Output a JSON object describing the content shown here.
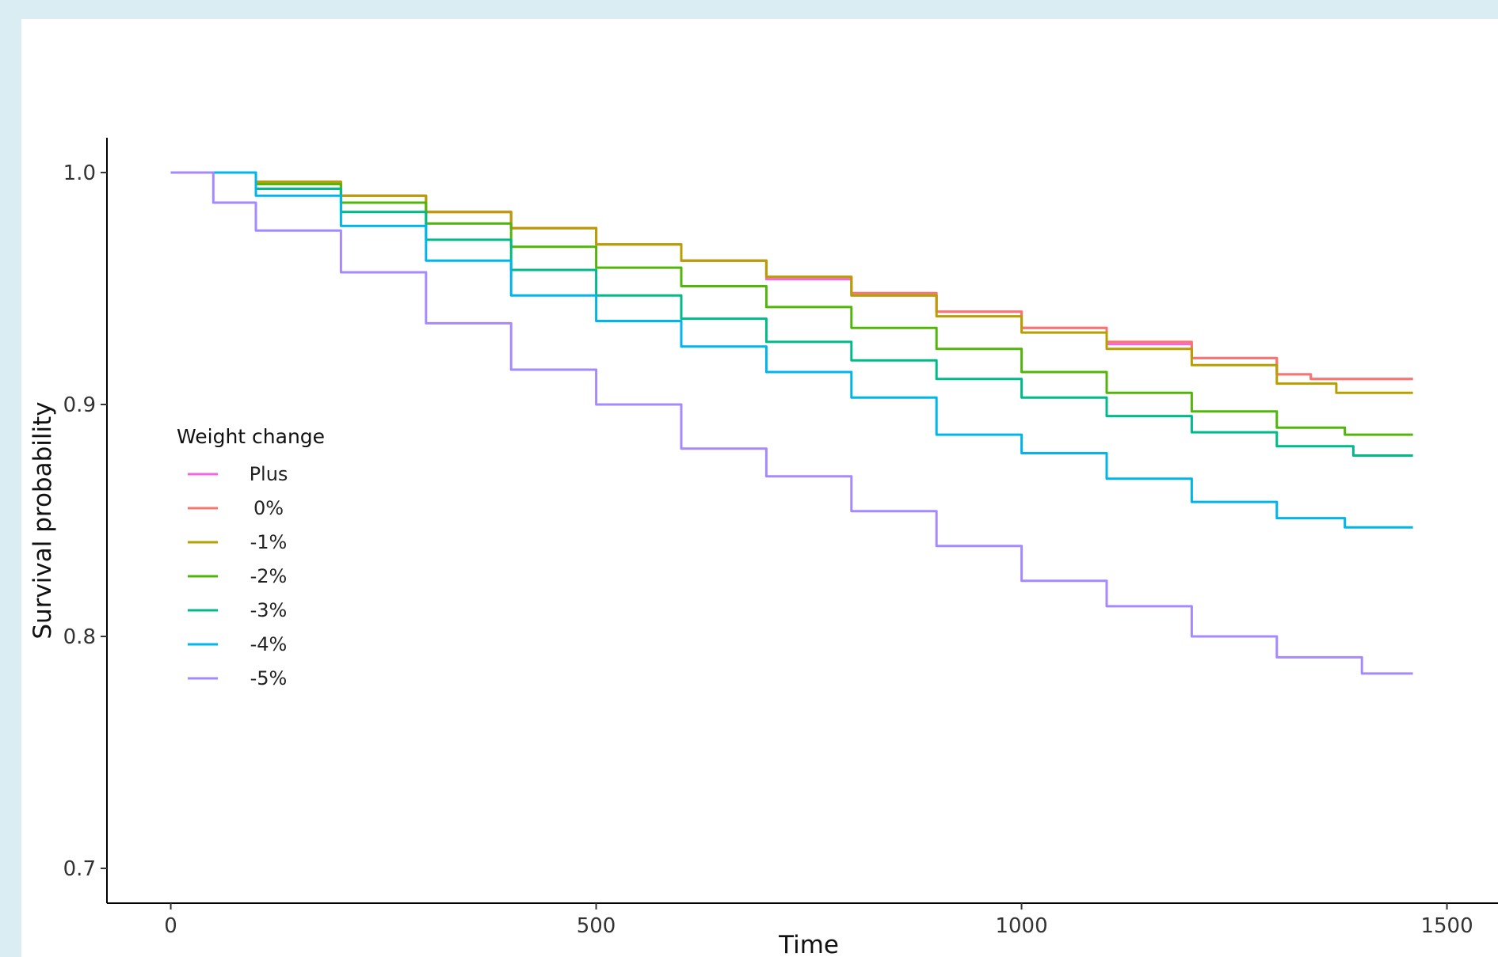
{
  "chart_data": {
    "type": "line",
    "title": "",
    "xlabel": "Time",
    "ylabel": "Survival probability",
    "xlim": [
      -75,
      1560
    ],
    "ylim": [
      0.685,
      1.015
    ],
    "xticks": [
      0,
      500,
      1000,
      1500
    ],
    "xtick_labels": [
      "0",
      "500",
      "1000",
      "1500"
    ],
    "yticks": [
      0.7,
      0.8,
      0.9,
      1.0
    ],
    "ytick_labels": [
      "0.7",
      "0.8",
      "0.9",
      "1.0"
    ],
    "grid": false,
    "step": true,
    "legend": {
      "title": "Weight change",
      "position": "left-inside"
    },
    "series": [
      {
        "name": "Plus",
        "color": "#f564e3",
        "x": [
          0,
          100,
          200,
          300,
          400,
          500,
          600,
          700,
          800,
          900,
          1000,
          1100,
          1200,
          1300,
          1340,
          1460
        ],
        "y": [
          1.0,
          0.996,
          0.99,
          0.983,
          0.976,
          0.969,
          0.962,
          0.954,
          0.947,
          0.94,
          0.933,
          0.926,
          0.92,
          0.913,
          0.911,
          0.911
        ]
      },
      {
        "name": "0%",
        "color": "#f8766d",
        "x": [
          0,
          100,
          200,
          300,
          400,
          500,
          600,
          700,
          800,
          900,
          1000,
          1100,
          1200,
          1300,
          1340,
          1460
        ],
        "y": [
          1.0,
          0.996,
          0.99,
          0.983,
          0.976,
          0.969,
          0.962,
          0.955,
          0.948,
          0.94,
          0.933,
          0.927,
          0.92,
          0.913,
          0.911,
          0.911
        ]
      },
      {
        "name": "-1%",
        "color": "#b79f00",
        "x": [
          0,
          100,
          200,
          300,
          400,
          500,
          600,
          700,
          800,
          900,
          1000,
          1100,
          1200,
          1300,
          1370,
          1460
        ],
        "y": [
          1.0,
          0.996,
          0.99,
          0.983,
          0.976,
          0.969,
          0.962,
          0.955,
          0.947,
          0.938,
          0.931,
          0.924,
          0.917,
          0.909,
          0.905,
          0.905
        ]
      },
      {
        "name": "-2%",
        "color": "#52b60a",
        "x": [
          0,
          100,
          200,
          300,
          400,
          500,
          600,
          700,
          800,
          900,
          1000,
          1100,
          1200,
          1300,
          1380,
          1460
        ],
        "y": [
          1.0,
          0.995,
          0.987,
          0.978,
          0.968,
          0.959,
          0.951,
          0.942,
          0.933,
          0.924,
          0.914,
          0.905,
          0.897,
          0.89,
          0.887,
          0.887
        ]
      },
      {
        "name": "-3%",
        "color": "#00ba8a",
        "x": [
          0,
          100,
          200,
          300,
          400,
          500,
          600,
          700,
          800,
          900,
          1000,
          1100,
          1200,
          1300,
          1390,
          1460
        ],
        "y": [
          1.0,
          0.993,
          0.983,
          0.971,
          0.958,
          0.947,
          0.937,
          0.927,
          0.919,
          0.911,
          0.903,
          0.895,
          0.888,
          0.882,
          0.878,
          0.878
        ]
      },
      {
        "name": "-4%",
        "color": "#00b5ec",
        "x": [
          0,
          100,
          200,
          300,
          400,
          500,
          600,
          700,
          800,
          900,
          1000,
          1100,
          1200,
          1300,
          1380,
          1460
        ],
        "y": [
          1.0,
          0.99,
          0.977,
          0.962,
          0.947,
          0.936,
          0.925,
          0.914,
          0.903,
          0.887,
          0.879,
          0.868,
          0.858,
          0.851,
          0.847,
          0.847
        ]
      },
      {
        "name": "-5%",
        "color": "#a58aff",
        "x": [
          0,
          50,
          100,
          200,
          300,
          400,
          500,
          600,
          700,
          800,
          900,
          1000,
          1100,
          1200,
          1300,
          1400,
          1460
        ],
        "y": [
          1.0,
          0.987,
          0.975,
          0.957,
          0.935,
          0.915,
          0.9,
          0.881,
          0.869,
          0.854,
          0.839,
          0.824,
          0.813,
          0.8,
          0.791,
          0.784,
          0.784
        ]
      }
    ]
  }
}
